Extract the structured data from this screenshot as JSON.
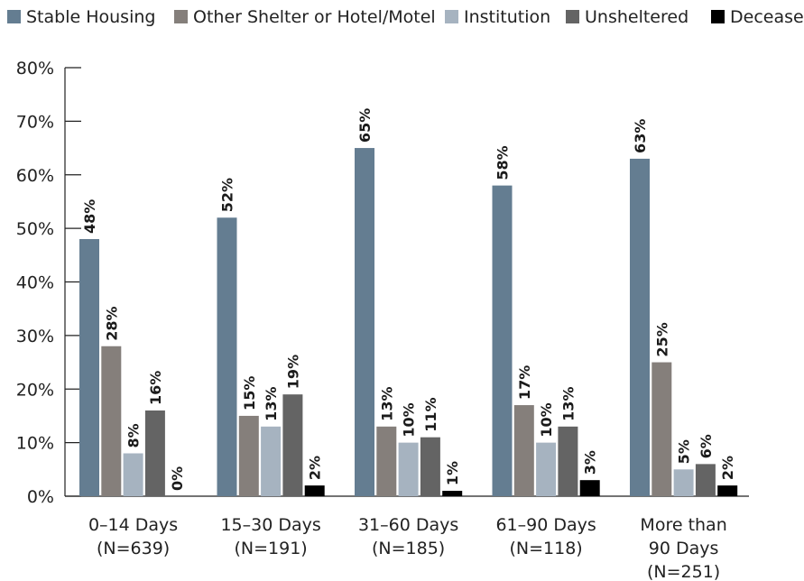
{
  "chart_data": {
    "type": "bar",
    "title": "",
    "xlabel": "",
    "ylabel": "",
    "ylim": [
      0,
      80
    ],
    "yticks": [
      "0%",
      "10%",
      "20%",
      "30%",
      "40%",
      "50%",
      "60%",
      "70%",
      "80%"
    ],
    "categories": [
      [
        "0–14 Days",
        "(N=639)"
      ],
      [
        "15–30 Days",
        "(N=191)"
      ],
      [
        "31–60 Days",
        "(N=185)"
      ],
      [
        "61–90 Days",
        "(N=118)"
      ],
      [
        "More than",
        "90 Days",
        "(N=251)"
      ]
    ],
    "legend_position": "top",
    "series": [
      {
        "name": "Stable Housing",
        "color": "#647d91",
        "values": [
          48,
          52,
          65,
          58,
          63
        ]
      },
      {
        "name": "Other Shelter or Hotel/Motel",
        "color": "#857f7b",
        "values": [
          28,
          15,
          13,
          17,
          25
        ]
      },
      {
        "name": "Institution",
        "color": "#a6b3c0",
        "values": [
          8,
          13,
          10,
          10,
          5
        ]
      },
      {
        "name": "Unsheltered",
        "color": "#646464",
        "values": [
          16,
          19,
          11,
          13,
          6
        ]
      },
      {
        "name": "Deceased",
        "color": "#000000",
        "values": [
          0,
          2,
          1,
          3,
          2
        ]
      }
    ],
    "value_suffix": "%"
  }
}
